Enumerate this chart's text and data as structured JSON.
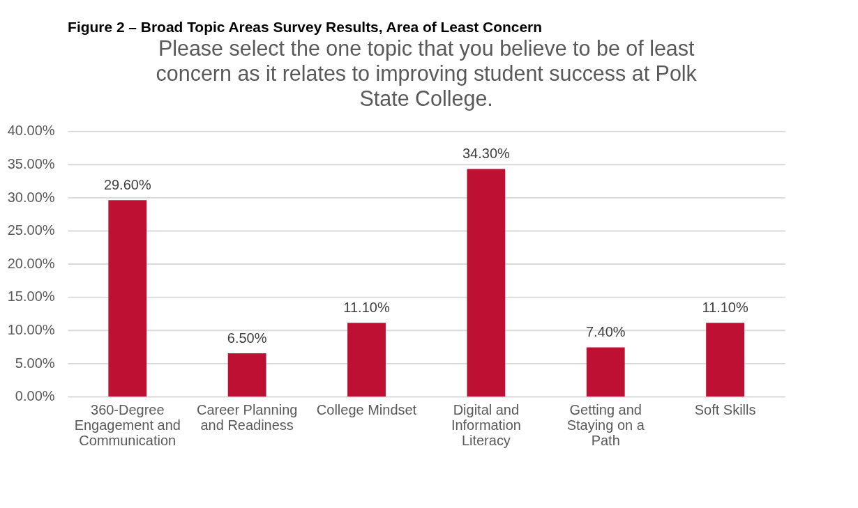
{
  "chart_data": {
    "type": "bar",
    "title": "Please select the one topic that you believe to be of least concern as it relates to improving student success at Polk State College.",
    "annotations": [
      "Figure 2 – Broad Topic Areas Survey Results, Area of Least Concern"
    ],
    "categories": [
      "360-Degree Engagement and Communication",
      "Career Planning and Readiness",
      "College Mindset",
      "Digital and Information Literacy",
      "Getting and Staying on a Path",
      "Soft Skills"
    ],
    "values": [
      29.6,
      6.5,
      11.1,
      34.3,
      7.4,
      11.1
    ],
    "value_labels": [
      "29.60%",
      "6.50%",
      "11.10%",
      "34.30%",
      "7.40%",
      "11.10%"
    ],
    "color": "#be1032",
    "ylim": [
      0,
      40
    ],
    "yticks": [
      {
        "value": 0,
        "label": "0.00%"
      },
      {
        "value": 5,
        "label": "5.00%"
      },
      {
        "value": 10,
        "label": "10.00%"
      },
      {
        "value": 15,
        "label": "15.00%"
      },
      {
        "value": 20,
        "label": "20.00%"
      },
      {
        "value": 25,
        "label": "25.00%"
      },
      {
        "value": 30,
        "label": "30.00%"
      },
      {
        "value": 35,
        "label": "35.00%"
      },
      {
        "value": 40,
        "label": "40.00%"
      }
    ],
    "grid": "y"
  }
}
